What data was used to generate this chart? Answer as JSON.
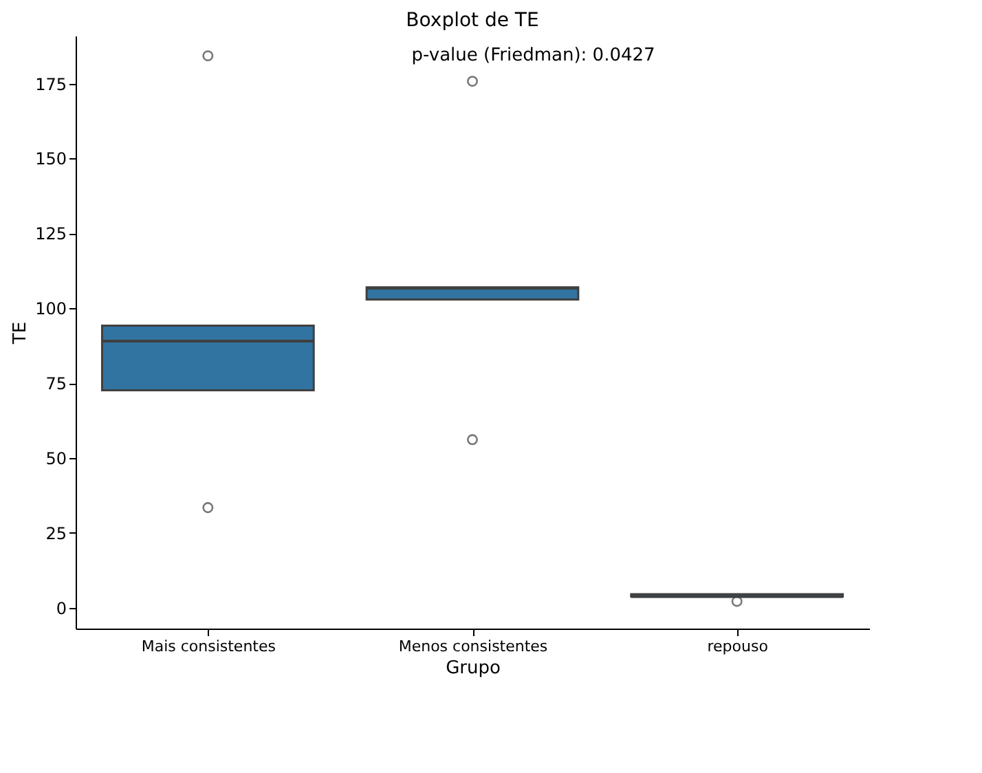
{
  "chart_data": {
    "type": "box",
    "title": "Boxplot de TE",
    "xlabel": "Grupo",
    "ylabel": "TE",
    "categories": [
      "Mais consistentes",
      "Menos consistentes",
      "repouso"
    ],
    "boxes": [
      {
        "low": 72.6,
        "q1": 72.6,
        "median": 89.0,
        "q3": 94.2,
        "high": 94.2,
        "outliers": [
          184.3,
          33.4
        ]
      },
      {
        "low": 102.9,
        "q1": 102.9,
        "median": 106.7,
        "q3": 107.0,
        "high": 107.0,
        "outliers": [
          175.8,
          56.1
        ]
      },
      {
        "low": 3.7,
        "q1": 3.7,
        "median": 3.7,
        "q3": 4.5,
        "high": 4.5,
        "outliers": [
          2.1
        ]
      }
    ],
    "color": "#3274a1",
    "ylim": [
      -7,
      191
    ],
    "yticks": [
      0,
      25,
      50,
      75,
      100,
      125,
      150,
      175
    ],
    "grid": false,
    "annotations": [
      "p-value (Friedman): 0.0427"
    ]
  }
}
